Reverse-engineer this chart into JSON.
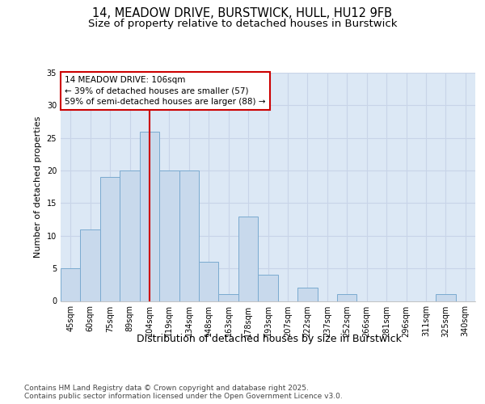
{
  "title_line1": "14, MEADOW DRIVE, BURSTWICK, HULL, HU12 9FB",
  "title_line2": "Size of property relative to detached houses in Burstwick",
  "xlabel": "Distribution of detached houses by size in Burstwick",
  "ylabel": "Number of detached properties",
  "categories": [
    "45sqm",
    "60sqm",
    "75sqm",
    "89sqm",
    "104sqm",
    "119sqm",
    "134sqm",
    "148sqm",
    "163sqm",
    "178sqm",
    "193sqm",
    "207sqm",
    "222sqm",
    "237sqm",
    "252sqm",
    "266sqm",
    "281sqm",
    "296sqm",
    "311sqm",
    "325sqm",
    "340sqm"
  ],
  "values": [
    5,
    11,
    19,
    20,
    26,
    20,
    20,
    6,
    1,
    13,
    4,
    0,
    2,
    0,
    1,
    0,
    0,
    0,
    0,
    1,
    0
  ],
  "bar_color": "#c8d9ec",
  "bar_edge_color": "#7aaad0",
  "bar_linewidth": 0.7,
  "vline_index": 4,
  "vline_color": "#cc0000",
  "annotation_line1": "14 MEADOW DRIVE: 106sqm",
  "annotation_line2": "← 39% of detached houses are smaller (57)",
  "annotation_line3": "59% of semi-detached houses are larger (88) →",
  "annotation_box_edgecolor": "#cc0000",
  "grid_color": "#c8d4e8",
  "background_color": "#dce8f5",
  "ylim": [
    0,
    35
  ],
  "yticks": [
    0,
    5,
    10,
    15,
    20,
    25,
    30,
    35
  ],
  "title_fontsize": 10.5,
  "subtitle_fontsize": 9.5,
  "ylabel_fontsize": 8,
  "xlabel_fontsize": 9,
  "tick_fontsize": 7,
  "annot_fontsize": 7.5,
  "footer_fontsize": 6.5,
  "footer_line1": "Contains HM Land Registry data © Crown copyright and database right 2025.",
  "footer_line2": "Contains public sector information licensed under the Open Government Licence v3.0."
}
